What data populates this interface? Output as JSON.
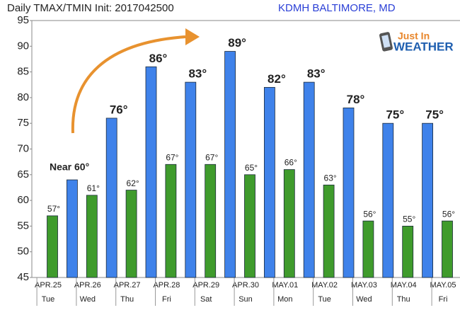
{
  "chart_data": {
    "type": "bar",
    "title": "Daily TMAX/TMIN Init: 2017042500",
    "subtitle": "KDMH BALTIMORE, MD",
    "logo": {
      "line1": "Just In",
      "line2": "WEATHER"
    },
    "annotation": "Near 60°",
    "categories": [
      "APR.25",
      "APR.26",
      "APR.27",
      "APR.28",
      "APR.29",
      "APR.30",
      "MAY.01",
      "MAY.02",
      "MAY.03",
      "MAY.04",
      "MAY.05"
    ],
    "weekdays": [
      "Tue",
      "Wed",
      "Thu",
      "Fri",
      "Sat",
      "Sun",
      "Mon",
      "Tue",
      "Wed",
      "Thu",
      "Fri"
    ],
    "series": [
      {
        "name": "TMIN",
        "color": "#3f9b2c",
        "values": [
          57,
          61,
          62,
          67,
          67,
          65,
          66,
          63,
          56,
          55,
          56
        ],
        "value_labels": [
          "57°",
          "61°",
          "62°",
          "67°",
          "67°",
          "65°",
          "66°",
          "63°",
          "56°",
          "55°",
          "56°"
        ]
      },
      {
        "name": "TMAX",
        "color": "#3f82ea",
        "values": [
          64,
          76,
          86,
          83,
          89,
          82,
          83,
          78,
          75,
          75,
          null
        ],
        "value_labels": [
          null,
          "76°",
          "86°",
          "83°",
          "89°",
          "82°",
          "83°",
          "78°",
          "75°",
          "75°",
          null
        ]
      }
    ],
    "ylim": [
      45,
      95
    ],
    "yticks": [
      45,
      50,
      55,
      60,
      65,
      70,
      75,
      80,
      85,
      90,
      95
    ],
    "grid": false
  }
}
